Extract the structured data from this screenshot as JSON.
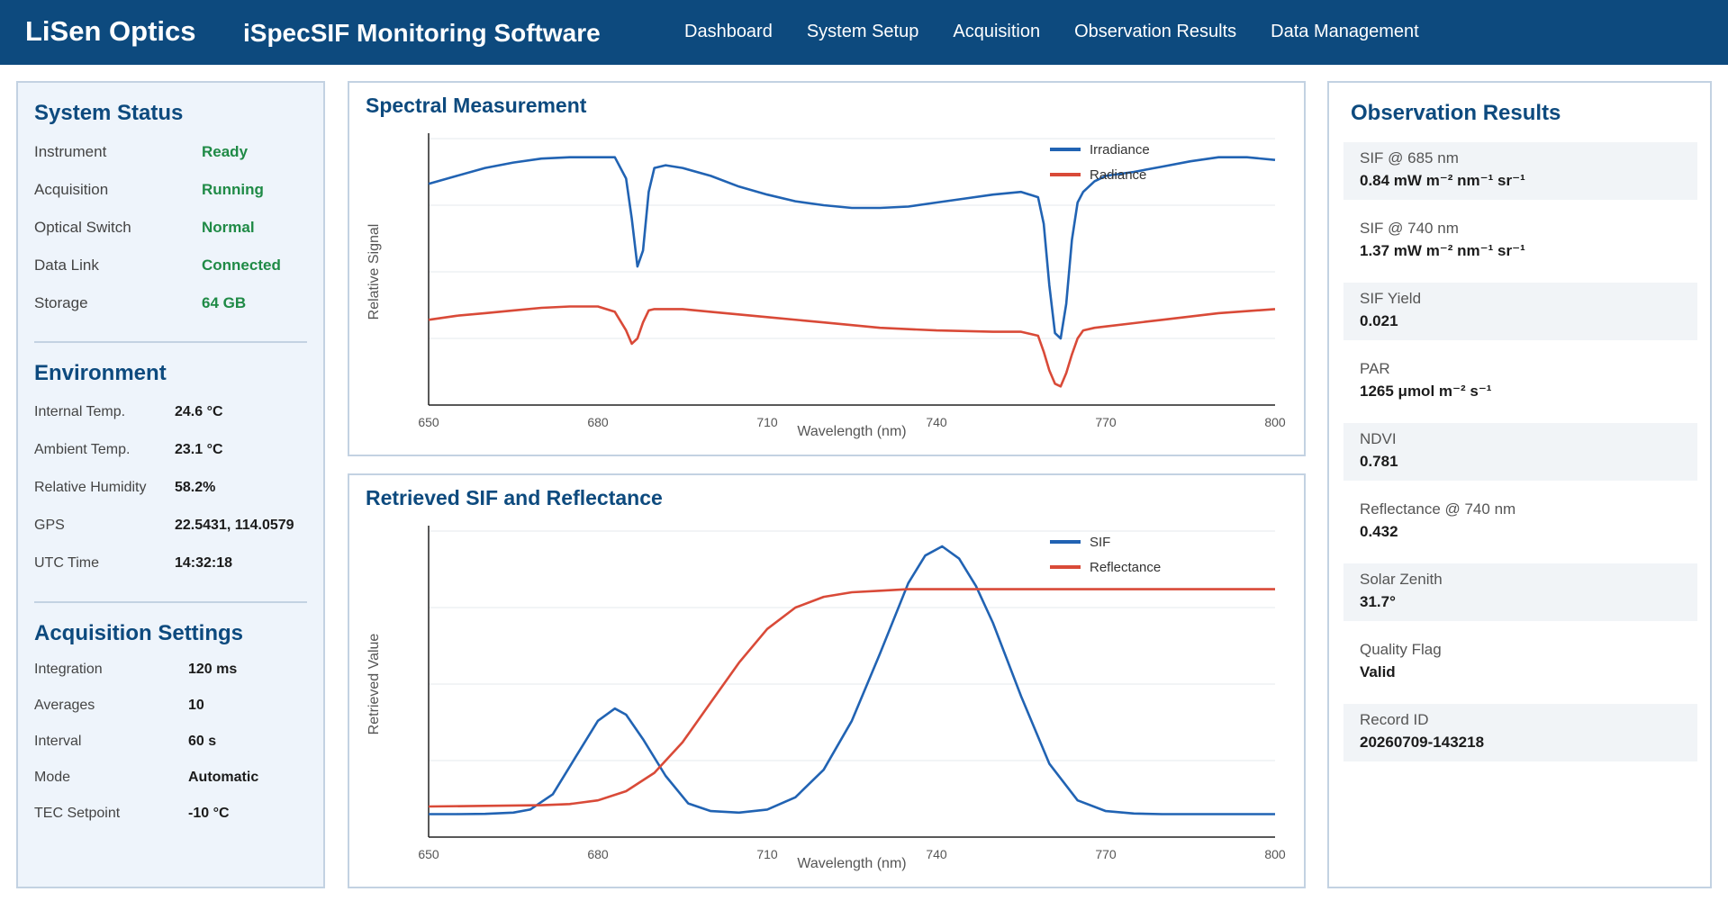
{
  "header": {
    "brand": "LiSen Optics",
    "app_title": "iSpecSIF Monitoring Software",
    "nav": [
      "Dashboard",
      "System Setup",
      "Acquisition",
      "Observation Results",
      "Data Management"
    ]
  },
  "system_status": {
    "title": "System Status",
    "items": [
      {
        "key": "Instrument",
        "value": "Ready"
      },
      {
        "key": "Acquisition",
        "value": "Running"
      },
      {
        "key": "Optical Switch",
        "value": "Normal"
      },
      {
        "key": "Data Link",
        "value": "Connected"
      },
      {
        "key": "Storage",
        "value": "64 GB"
      }
    ]
  },
  "environment": {
    "title": "Environment",
    "items": [
      {
        "key": "Internal Temp.",
        "value": "24.6 °C"
      },
      {
        "key": "Ambient Temp.",
        "value": "23.1 °C"
      },
      {
        "key": "Relative Humidity",
        "value": "58.2%"
      },
      {
        "key": "GPS",
        "value": "22.5431, 114.0579"
      },
      {
        "key": "UTC Time",
        "value": "14:32:18"
      }
    ]
  },
  "acquisition_settings": {
    "title": "Acquisition Settings",
    "items": [
      {
        "key": "Integration",
        "value": "120 ms"
      },
      {
        "key": "Averages",
        "value": "10"
      },
      {
        "key": "Interval",
        "value": "60 s"
      },
      {
        "key": "Mode",
        "value": "Automatic"
      },
      {
        "key": "TEC Setpoint",
        "value": "-10 °C"
      }
    ]
  },
  "observation_results": {
    "title": "Observation Results",
    "items": [
      {
        "label": "SIF @ 685 nm",
        "value": "0.84 mW m⁻² nm⁻¹ sr⁻¹"
      },
      {
        "label": "SIF @ 740 nm",
        "value": "1.37 mW m⁻² nm⁻¹ sr⁻¹"
      },
      {
        "label": "SIF Yield",
        "value": "0.021"
      },
      {
        "label": "PAR",
        "value": "1265 μmol m⁻² s⁻¹"
      },
      {
        "label": "NDVI",
        "value": "0.781"
      },
      {
        "label": "Reflectance @ 740 nm",
        "value": "0.432"
      },
      {
        "label": "Solar Zenith",
        "value": "31.7°"
      },
      {
        "label": "Quality Flag",
        "value": "Valid"
      },
      {
        "label": "Record ID",
        "value": "20260709-143218"
      }
    ]
  },
  "colors": {
    "header_bg": "#0d4a7e",
    "title_blue": "#0d4a7e",
    "status_ok": "#1f8a46",
    "series_blue": "#2163b3",
    "series_red": "#d94a38"
  },
  "chart_data": [
    {
      "type": "line",
      "title": "Spectral Measurement",
      "xlabel": "Wavelength (nm)",
      "ylabel": "Relative Signal",
      "xlim": [
        650,
        800
      ],
      "ylim": [
        0,
        1
      ],
      "xticks": [
        650,
        680,
        710,
        740,
        770,
        800
      ],
      "grid": true,
      "legend": "top-right",
      "series": [
        {
          "name": "Irradiance",
          "color": "#2163b3",
          "x": [
            650,
            655,
            660,
            665,
            670,
            675,
            680,
            683,
            685,
            686,
            687,
            688,
            689,
            690,
            692,
            695,
            700,
            705,
            710,
            715,
            720,
            725,
            730,
            735,
            740,
            745,
            750,
            755,
            758,
            759,
            760,
            761,
            762,
            763,
            764,
            765,
            766,
            768,
            770,
            775,
            780,
            785,
            790,
            795,
            800
          ],
          "y": [
            0.83,
            0.86,
            0.89,
            0.91,
            0.925,
            0.93,
            0.93,
            0.93,
            0.85,
            0.7,
            0.52,
            0.58,
            0.8,
            0.89,
            0.9,
            0.89,
            0.86,
            0.82,
            0.79,
            0.765,
            0.75,
            0.74,
            0.74,
            0.745,
            0.76,
            0.775,
            0.79,
            0.8,
            0.78,
            0.68,
            0.45,
            0.27,
            0.25,
            0.38,
            0.62,
            0.76,
            0.8,
            0.84,
            0.86,
            0.875,
            0.895,
            0.915,
            0.93,
            0.93,
            0.92
          ]
        },
        {
          "name": "Radiance",
          "color": "#d94a38",
          "x": [
            650,
            655,
            660,
            665,
            670,
            675,
            680,
            683,
            685,
            686,
            687,
            688,
            689,
            690,
            695,
            700,
            710,
            720,
            730,
            740,
            750,
            755,
            758,
            759,
            760,
            761,
            762,
            763,
            764,
            765,
            766,
            768,
            770,
            780,
            790,
            800
          ],
          "y": [
            0.32,
            0.335,
            0.345,
            0.355,
            0.365,
            0.37,
            0.37,
            0.35,
            0.28,
            0.23,
            0.25,
            0.31,
            0.355,
            0.36,
            0.36,
            0.35,
            0.33,
            0.31,
            0.29,
            0.28,
            0.275,
            0.275,
            0.26,
            0.2,
            0.13,
            0.08,
            0.07,
            0.12,
            0.19,
            0.25,
            0.28,
            0.29,
            0.295,
            0.32,
            0.345,
            0.36
          ]
        }
      ]
    },
    {
      "type": "line",
      "title": "Retrieved SIF and Reflectance",
      "xlabel": "Wavelength (nm)",
      "ylabel": "Retrieved Value",
      "xlim": [
        650,
        800
      ],
      "ylim": [
        0,
        1
      ],
      "xticks": [
        650,
        680,
        710,
        740,
        770,
        800
      ],
      "grid": true,
      "legend": "top-right",
      "series": [
        {
          "name": "SIF",
          "color": "#2163b3",
          "x": [
            650,
            655,
            660,
            665,
            668,
            672,
            676,
            680,
            683,
            685,
            688,
            692,
            696,
            700,
            705,
            710,
            715,
            720,
            725,
            730,
            735,
            738,
            741,
            744,
            747,
            750,
            755,
            760,
            765,
            770,
            775,
            780,
            790,
            800
          ],
          "y": [
            0.075,
            0.075,
            0.076,
            0.08,
            0.09,
            0.14,
            0.26,
            0.38,
            0.42,
            0.4,
            0.32,
            0.2,
            0.11,
            0.085,
            0.08,
            0.09,
            0.13,
            0.22,
            0.38,
            0.6,
            0.83,
            0.92,
            0.95,
            0.91,
            0.82,
            0.7,
            0.46,
            0.24,
            0.12,
            0.085,
            0.077,
            0.075,
            0.075,
            0.075
          ]
        },
        {
          "name": "Reflectance",
          "color": "#d94a38",
          "x": [
            650,
            660,
            670,
            675,
            680,
            685,
            690,
            695,
            700,
            705,
            710,
            715,
            720,
            725,
            730,
            735,
            740,
            750,
            760,
            770,
            780,
            790,
            800
          ],
          "y": [
            0.1,
            0.102,
            0.104,
            0.108,
            0.12,
            0.15,
            0.21,
            0.31,
            0.44,
            0.57,
            0.68,
            0.75,
            0.785,
            0.8,
            0.805,
            0.81,
            0.81,
            0.81,
            0.81,
            0.81,
            0.81,
            0.81,
            0.81
          ]
        }
      ]
    }
  ]
}
